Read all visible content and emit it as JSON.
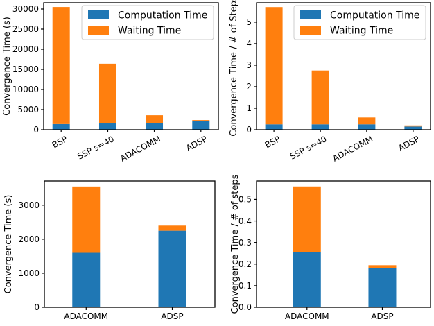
{
  "figure_title": "",
  "palette": {
    "computation": "#1f77b4",
    "waiting": "#ff7f0e",
    "axis": "#000000",
    "legend_border": "#cccccc",
    "background": "#ffffff"
  },
  "legend": {
    "entries": [
      {
        "label": "Computation Time",
        "color_key": "computation"
      },
      {
        "label": "Waiting Time",
        "color_key": "waiting"
      }
    ],
    "position": "upper right"
  },
  "chart_data": [
    {
      "id": "top-left",
      "type": "bar",
      "stacked": true,
      "title": "",
      "xlabel": "",
      "ylabel": "Convergence Time (s)",
      "categories": [
        "BSP",
        "SSP s=40",
        "ADACOMM",
        "ADSP"
      ],
      "series": [
        {
          "name": "Computation Time",
          "color_key": "computation",
          "values": [
            1400,
            1550,
            1600,
            2250
          ]
        },
        {
          "name": "Waiting Time",
          "color_key": "waiting",
          "values": [
            29100,
            14850,
            2000,
            150
          ]
        }
      ],
      "ylim": [
        0,
        31550
      ],
      "yticks": [
        0,
        5000,
        10000,
        15000,
        20000,
        25000,
        30000
      ],
      "ytick_labels": [
        "0",
        "5000",
        "10000",
        "15000",
        "20000",
        "25000",
        "30000"
      ],
      "xtick_rotation": 28,
      "grid": false,
      "legend": true
    },
    {
      "id": "top-right",
      "type": "bar",
      "stacked": true,
      "title": "",
      "xlabel": "",
      "ylabel": "Convergence Time / # of Steps",
      "categories": [
        "BSP",
        "SSP s=40",
        "ADACOMM",
        "ADSP"
      ],
      "series": [
        {
          "name": "Computation Time",
          "color_key": "computation",
          "values": [
            0.25,
            0.25,
            0.25,
            0.15
          ]
        },
        {
          "name": "Waiting Time",
          "color_key": "waiting",
          "values": [
            5.45,
            2.5,
            0.32,
            0.05
          ]
        }
      ],
      "ylim": [
        0,
        5.9
      ],
      "yticks": [
        0,
        1,
        2,
        3,
        4,
        5
      ],
      "ytick_labels": [
        "0",
        "1",
        "2",
        "3",
        "4",
        "5"
      ],
      "xtick_rotation": 28,
      "grid": false,
      "legend": true
    },
    {
      "id": "bottom-left",
      "type": "bar",
      "stacked": true,
      "title": "",
      "xlabel": "",
      "ylabel": "Convergence Time (s)",
      "categories": [
        "ADACOMM",
        "ADSP"
      ],
      "series": [
        {
          "name": "Computation Time",
          "color_key": "computation",
          "values": [
            1600,
            2250
          ]
        },
        {
          "name": "Waiting Time",
          "color_key": "waiting",
          "values": [
            1950,
            150
          ]
        }
      ],
      "ylim": [
        0,
        3710
      ],
      "yticks": [
        0,
        1000,
        2000,
        3000
      ],
      "ytick_labels": [
        "0",
        "1000",
        "2000",
        "3000"
      ],
      "xtick_rotation": 0,
      "grid": false,
      "legend": false
    },
    {
      "id": "bottom-right",
      "type": "bar",
      "stacked": true,
      "title": "",
      "xlabel": "",
      "ylabel": "Convergence Time / # of steps",
      "categories": [
        "ADACOMM",
        "ADSP"
      ],
      "series": [
        {
          "name": "Computation Time",
          "color_key": "computation",
          "values": [
            0.255,
            0.18
          ]
        },
        {
          "name": "Waiting Time",
          "color_key": "waiting",
          "values": [
            0.305,
            0.015
          ]
        }
      ],
      "ylim": [
        0,
        0.585
      ],
      "yticks": [
        0.0,
        0.1,
        0.2,
        0.3,
        0.4,
        0.5
      ],
      "ytick_labels": [
        "0.0",
        "0.1",
        "0.2",
        "0.3",
        "0.4",
        "0.5"
      ],
      "xtick_rotation": 0,
      "grid": false,
      "legend": false
    }
  ]
}
